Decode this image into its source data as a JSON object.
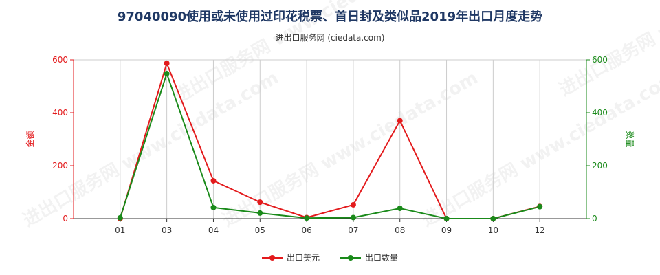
{
  "title": "97040090使用或未使用过印花税票、首日封及类似品2019年出口月度走势",
  "subtitle": "进出口服务网 (ciedata.com)",
  "watermark": "进出口服务网 www.ciedata.com",
  "colors": {
    "usd": "#e31a1c",
    "qty": "#1a8a1a",
    "grid": "#cccccc",
    "axis": "#333333"
  },
  "chart_data": {
    "type": "line",
    "categories": [
      "01",
      "03",
      "04",
      "05",
      "06",
      "07",
      "08",
      "09",
      "10",
      "12"
    ],
    "series": [
      {
        "name": "出口美元",
        "axis": "left",
        "values": [
          0,
          587,
          143,
          62,
          4,
          52,
          370,
          0,
          0,
          46
        ]
      },
      {
        "name": "出口数量",
        "axis": "right",
        "values": [
          3,
          548,
          42,
          21,
          2,
          4,
          39,
          0,
          0,
          45
        ]
      }
    ],
    "ylabel_left": "金额",
    "ylabel_right": "数量",
    "ylim_left": [
      0,
      600
    ],
    "ylim_right": [
      0,
      600
    ],
    "yticks_left": [
      "0",
      "200",
      "400",
      "600"
    ],
    "yticks_right": [
      "0",
      "200",
      "400",
      "600"
    ],
    "grid": "vertical",
    "legend_position": "bottom"
  }
}
